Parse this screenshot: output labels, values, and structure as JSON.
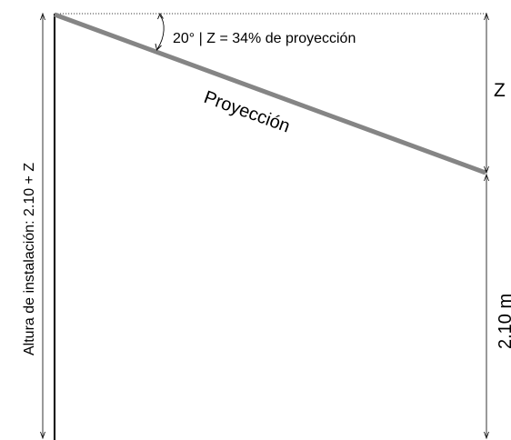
{
  "diagram": {
    "angle_label": "20° | Z = 34% de proyección",
    "beam_label": "Proyección",
    "z_label": "Z",
    "right_height_label": "2.10 m",
    "left_height_label": "Altura de instalación: 2.10 + Z"
  },
  "colors": {
    "beam": "#858585",
    "wall": "#000000",
    "dimension_lines": "#000000",
    "reference_line": "#000000"
  },
  "values": {
    "angle_degrees": 20,
    "z_percent_of_projection": 34,
    "base_height_m": 2.1
  }
}
